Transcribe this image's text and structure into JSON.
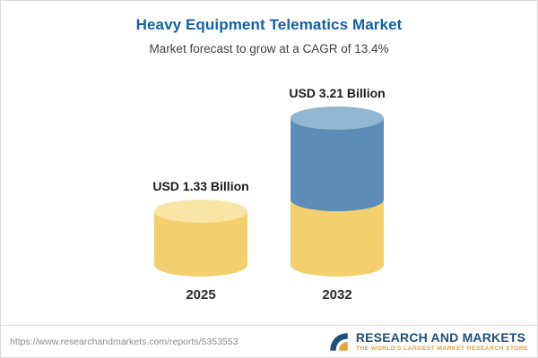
{
  "header": {
    "title": "Heavy Equipment Telematics Market",
    "subtitle": "Market forecast to grow at a CAGR of 13.4%"
  },
  "chart_data": {
    "type": "bar",
    "title": "Heavy Equipment Telematics Market",
    "subtitle": "Market forecast to grow at a CAGR of 13.4%",
    "categories": [
      "2025",
      "2032"
    ],
    "values": [
      1.33,
      3.21
    ],
    "unit": "USD Billion",
    "value_labels": [
      "USD 1.33 Billion",
      "USD 3.21 Billion"
    ],
    "cagr_percent": 13.4,
    "bar_style": "3d-cylinder",
    "ylim": [
      0,
      3.5
    ],
    "grid": false,
    "legend": "none"
  },
  "footer": {
    "url": "https://www.researchandmarkets.com/reports/5353553",
    "brand_name": "RESEARCH AND MARKETS",
    "brand_tagline": "THE WORLD'S LARGEST MARKET RESEARCH STORE"
  },
  "colors": {
    "title_blue": "#155fa8",
    "subtitle_gray": "#3f3f3f",
    "bar_yellow": "#F4CF6D",
    "bar_yellow_cap": "#F9E6A7",
    "bar_blue": "#5C8DB9",
    "bar_blue_cap": "#92B6D2",
    "label_dark": "#1b1b1b",
    "brand_navy": "#1F4E79",
    "brand_gold": "#E8A33D",
    "footer_gray": "#8b8b8b",
    "border_gray": "#d9d9d9"
  }
}
